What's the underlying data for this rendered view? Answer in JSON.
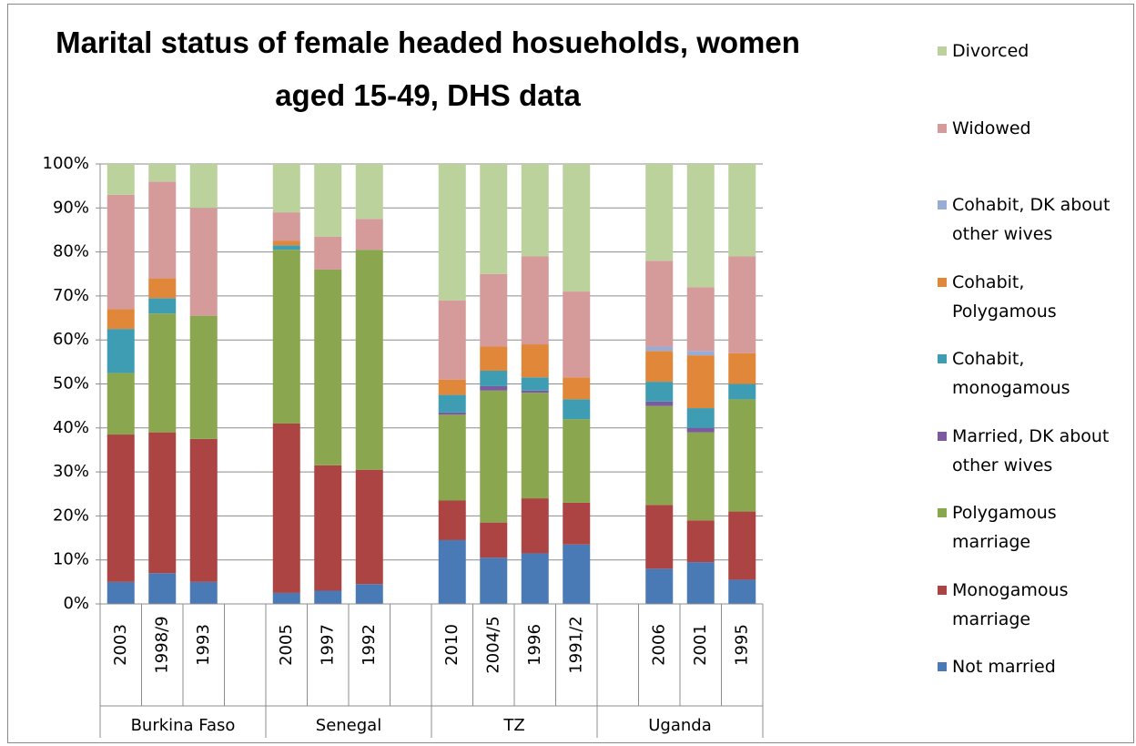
{
  "chart_data": {
    "type": "stacked_bar",
    "title": "Marital status of female headed hosueholds, women aged 15-49, DHS data",
    "categories": [
      "2003",
      "1998/9",
      "1993",
      null,
      "2005",
      "1997",
      "1992",
      null,
      "2010",
      "2004/5",
      "1996",
      "1991/2",
      null,
      "2006",
      "2001",
      "1995"
    ],
    "groups": [
      "Burkina Faso",
      "Senegal",
      "TZ",
      "Uganda"
    ],
    "series": [
      {
        "name": "Not married",
        "color": "#4a7ab5",
        "values": [
          5,
          7,
          5,
          null,
          2.5,
          3,
          4.5,
          null,
          14.5,
          10.5,
          11.5,
          13.5,
          null,
          8,
          9.5,
          5.5
        ]
      },
      {
        "name": "Monogamous marriage",
        "color": "#ac4444",
        "values": [
          33.5,
          32,
          32.5,
          null,
          38.5,
          28.5,
          26,
          null,
          9,
          8,
          12.5,
          9.5,
          null,
          14.5,
          9.5,
          15.5
        ]
      },
      {
        "name": "Polygamous marriage",
        "color": "#8aa64f",
        "values": [
          14,
          27,
          28,
          null,
          39.5,
          44.5,
          50,
          null,
          19.5,
          30,
          24,
          19,
          null,
          22.5,
          20,
          25.5
        ]
      },
      {
        "name": "Married, DK about other wives",
        "color": "#7b5aa0",
        "values": [
          0,
          0,
          0,
          null,
          0,
          0,
          0,
          null,
          0.5,
          1,
          0.5,
          0,
          null,
          1,
          1,
          0
        ]
      },
      {
        "name": "Cohabit, monogamous",
        "color": "#3f9db3",
        "values": [
          10,
          3.5,
          0,
          null,
          1,
          0,
          0,
          null,
          4,
          3.5,
          3,
          4.5,
          null,
          4.5,
          4.5,
          3.5
        ]
      },
      {
        "name": "Cohabit, Polygamous",
        "color": "#e0873a",
        "values": [
          4.5,
          4.5,
          0,
          null,
          1,
          0,
          0,
          null,
          3.5,
          5.5,
          7.5,
          5,
          null,
          7,
          12,
          7
        ]
      },
      {
        "name": "Cohabit, DK about other wives",
        "color": "#99acd5",
        "values": [
          0,
          0,
          0,
          null,
          0,
          0,
          0,
          null,
          0,
          0,
          0,
          0,
          null,
          1,
          1,
          0
        ]
      },
      {
        "name": "Widowed",
        "color": "#d59a9a",
        "values": [
          26,
          22,
          24.5,
          null,
          6.5,
          7.5,
          7,
          null,
          18,
          16.5,
          20,
          19.5,
          null,
          19.5,
          14.5,
          22
        ]
      },
      {
        "name": "Divorced",
        "color": "#bcd29c",
        "values": [
          7,
          4,
          10,
          null,
          11,
          16.5,
          12.5,
          null,
          31,
          25,
          21,
          29,
          null,
          22,
          28,
          21
        ]
      }
    ],
    "ylim": [
      0,
      100
    ],
    "yticks": [
      {
        "value": 0,
        "label": "0%"
      },
      {
        "value": 10,
        "label": "10%"
      },
      {
        "value": 20,
        "label": "20%"
      },
      {
        "value": 30,
        "label": "30%"
      },
      {
        "value": 40,
        "label": "40%"
      },
      {
        "value": 50,
        "label": "50%"
      },
      {
        "value": 60,
        "label": "60%"
      },
      {
        "value": 70,
        "label": "70%"
      },
      {
        "value": 80,
        "label": "80%"
      },
      {
        "value": 90,
        "label": "90%"
      },
      {
        "value": 100,
        "label": "100%"
      }
    ],
    "grid": true
  }
}
